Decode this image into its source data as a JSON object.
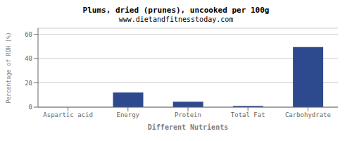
{
  "chart_data": {
    "type": "bar",
    "title": "Plums, dried (prunes), uncooked per 100g",
    "subtitle": "www.dietandfitnesstoday.com",
    "xlabel": "Different Nutrients",
    "ylabel": "Percentage of RDH (%)",
    "categories": [
      "Aspartic acid",
      "Energy",
      "Protein",
      "Total Fat",
      "Carbohydrate"
    ],
    "values": [
      0.0,
      12.0,
      4.5,
      1.0,
      49.5
    ],
    "color": "#2e4a8e",
    "ylim": [
      0,
      65
    ],
    "yticks": [
      0,
      20,
      40,
      60
    ],
    "grid": true
  }
}
